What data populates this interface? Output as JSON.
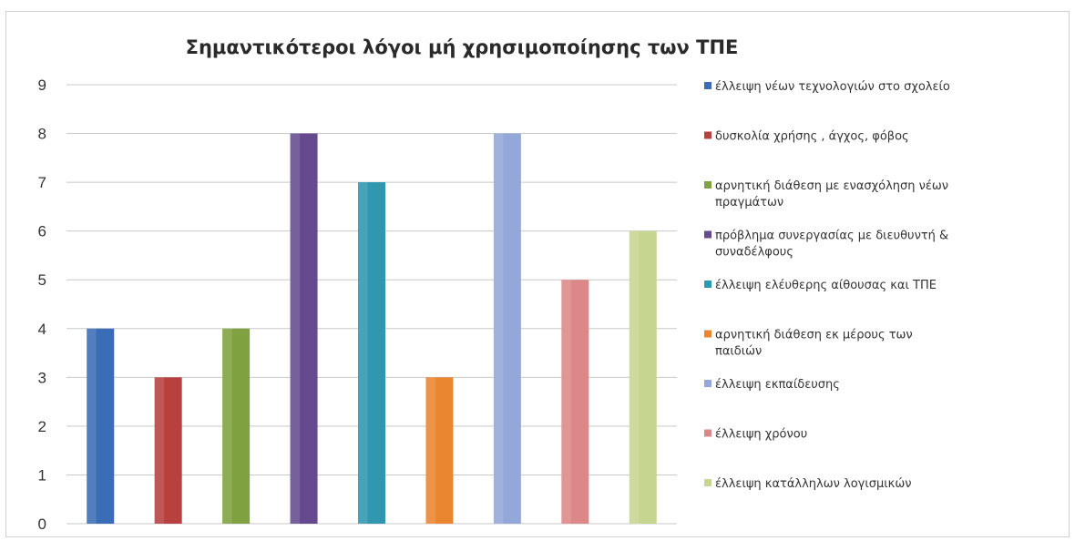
{
  "chart_data": {
    "type": "bar",
    "title": "Σημαντικότεροι λόγοι μή χρησιμοποίησης των ΤΠΕ",
    "xlabel": "",
    "ylabel": "",
    "ylim": [
      0,
      9
    ],
    "yticks": [
      0,
      1,
      2,
      3,
      4,
      5,
      6,
      7,
      8,
      9
    ],
    "grid": true,
    "legend_position": "right",
    "series": [
      {
        "name": "έλλειψη νέων τεχνολογιών στο σχολείο",
        "value": 4,
        "color": "#3a6db5"
      },
      {
        "name": "δυσκολία χρήσης , άγχος, φόβος",
        "value": 3,
        "color": "#b8403e"
      },
      {
        "name": "αρνητική διάθεση με ενασχόληση νέων πραγμάτων",
        "value": 4,
        "color": "#7fa13f"
      },
      {
        "name": "πρόβλημα συνεργασίας με διευθυντή & συναδέλφους",
        "value": 8,
        "color": "#654a8e"
      },
      {
        "name": "έλλειψη ελέυθερης αίθουσας και ΤΠΕ",
        "value": 7,
        "color": "#2f97b0"
      },
      {
        "name": "αρνητική διάθεση εκ μέρους των παιδιών",
        "value": 3,
        "color": "#ea8530"
      },
      {
        "name": "έλλειψη εκπαίδευσης",
        "value": 8,
        "color": "#93a8d8"
      },
      {
        "name": "έλλειψη χρόνου",
        "value": 5,
        "color": "#dc8888"
      },
      {
        "name": "έλλειψη κατάλληλων λογισμικών",
        "value": 6,
        "color": "#c6d590"
      }
    ]
  }
}
